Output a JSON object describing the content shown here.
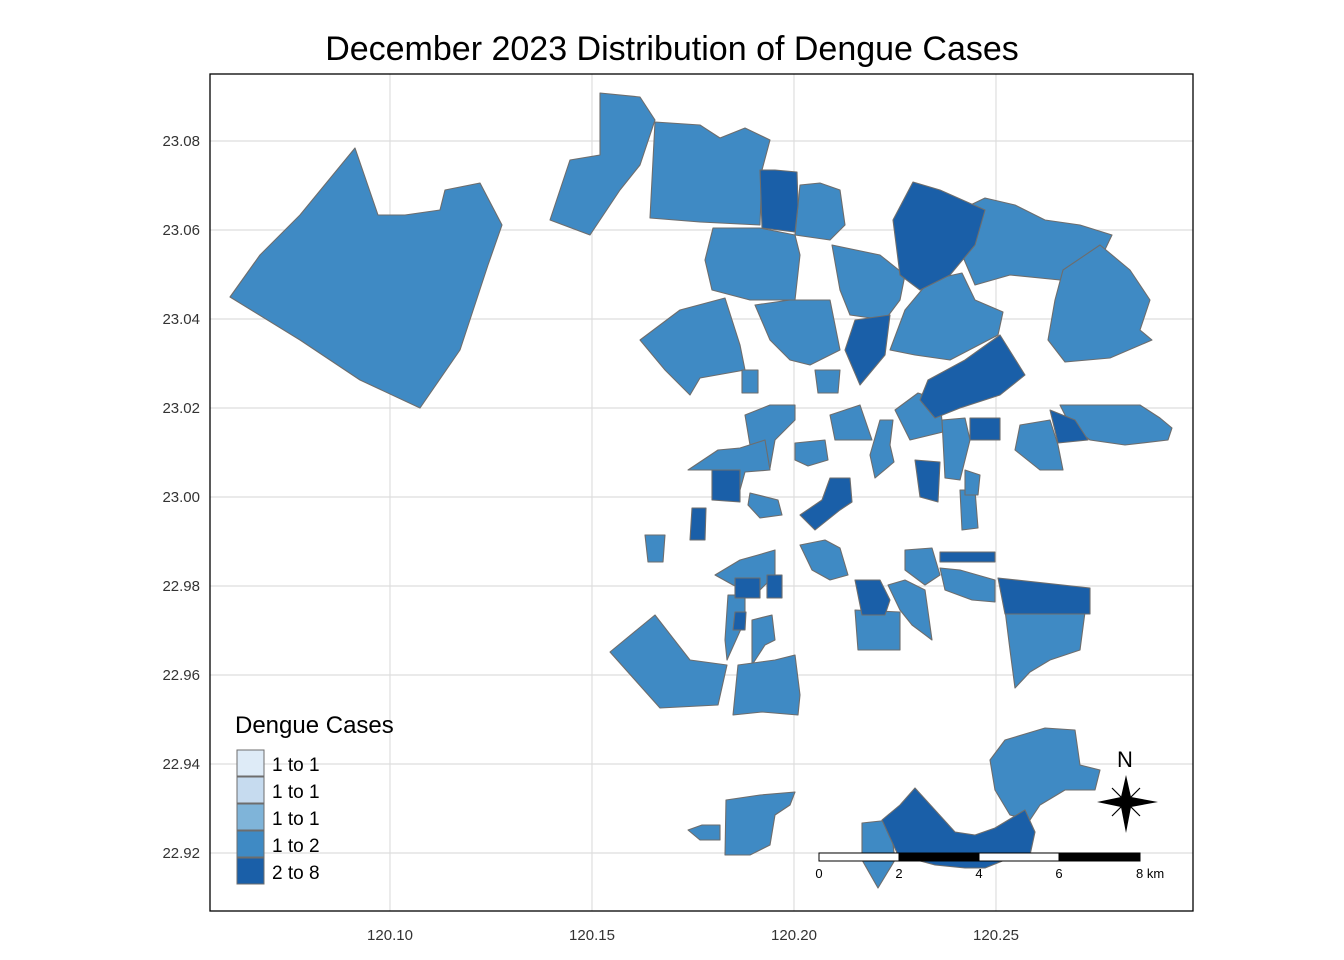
{
  "map": {
    "title": "December 2023 Distribution of Dengue Cases",
    "x_ticks": [
      "120.10",
      "120.15",
      "120.20",
      "120.25"
    ],
    "y_ticks": [
      "23.08",
      "23.06",
      "23.04",
      "23.02",
      "23.00",
      "22.98",
      "22.96",
      "22.94",
      "22.92"
    ],
    "legend": {
      "title": "Dengue Cases",
      "items": [
        {
          "label": "1 to 1",
          "color": "#deebf7"
        },
        {
          "label": "1 to 1",
          "color": "#c6dbef"
        },
        {
          "label": "1 to 1",
          "color": "#7fb4d9"
        },
        {
          "label": "1 to 2",
          "color": "#3f8ac4"
        },
        {
          "label": "2 to 8",
          "color": "#1a5fa8"
        }
      ]
    },
    "scale_bar": {
      "labels": [
        "0",
        "2",
        "4",
        "6",
        "8 km"
      ]
    },
    "north_arrow": {
      "label": "N"
    },
    "region_colors": {
      "mid": "#3f8ac4",
      "high": "#1a5fa8"
    }
  }
}
